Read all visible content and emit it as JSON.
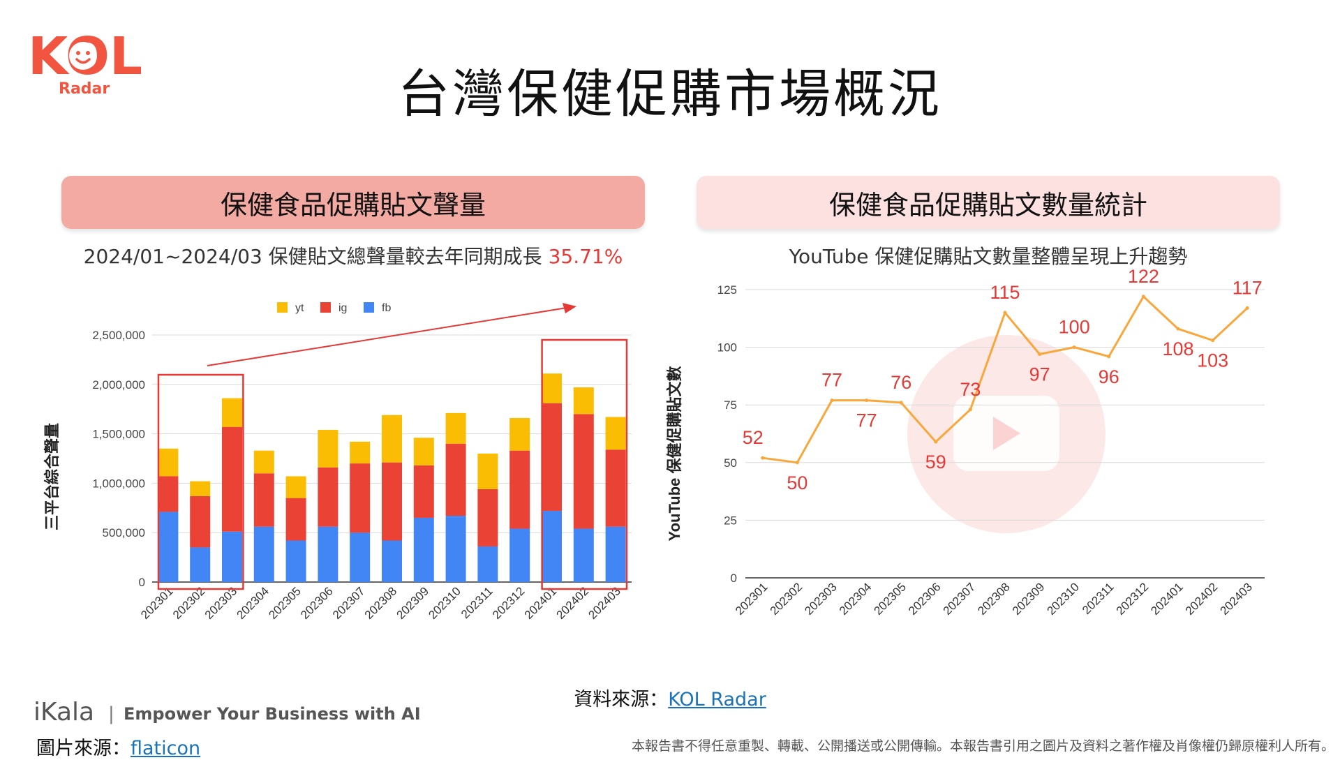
{
  "logo": {
    "main": "KOL",
    "sub": "Radar"
  },
  "title": "台灣保健促購市場概況",
  "left_panel": {
    "banner": "保健食品促購貼文聲量",
    "subtitle_prefix": "2024/01~2024/03 保健貼文總聲量較去年同期成長 ",
    "growth": "35.71%"
  },
  "right_panel": {
    "banner": "保健食品促購貼文數量統計",
    "subtitle": "YouTube  保健促購貼文數量整體呈現上升趨勢"
  },
  "chart_data": [
    {
      "type": "bar",
      "stacked": true,
      "categories": [
        "202301",
        "202302",
        "202303",
        "202304",
        "202305",
        "202306",
        "202307",
        "202308",
        "202309",
        "202310",
        "202311",
        "202312",
        "202401",
        "202402",
        "202403"
      ],
      "series": [
        {
          "name": "fb",
          "color": "#4285f4",
          "values": [
            710000,
            350000,
            510000,
            560000,
            420000,
            560000,
            500000,
            420000,
            650000,
            670000,
            360000,
            540000,
            720000,
            540000,
            560000
          ]
        },
        {
          "name": "ig",
          "color": "#ea4335",
          "values": [
            360000,
            520000,
            1060000,
            540000,
            430000,
            600000,
            700000,
            790000,
            530000,
            730000,
            580000,
            790000,
            1090000,
            1160000,
            780000
          ]
        },
        {
          "name": "yt",
          "color": "#fbbc04",
          "values": [
            280000,
            150000,
            290000,
            230000,
            220000,
            380000,
            220000,
            480000,
            280000,
            310000,
            360000,
            330000,
            300000,
            270000,
            330000
          ]
        }
      ],
      "legend": [
        "yt",
        "ig",
        "fb"
      ],
      "legend_position": "top",
      "ylabel": "三平台綜合聲量",
      "yticks": [
        "0",
        "500,000",
        "1,000,000",
        "1,500,000",
        "2,000,000",
        "2,500,000"
      ],
      "ylim": [
        0,
        2500000
      ],
      "grid": true,
      "highlighted_groups": [
        [
          "202301",
          "202303"
        ],
        [
          "202401",
          "202403"
        ]
      ]
    },
    {
      "type": "line",
      "categories": [
        "202301",
        "202302",
        "202303",
        "202304",
        "202305",
        "202306",
        "202307",
        "202308",
        "202309",
        "202310",
        "202311",
        "202312",
        "202401",
        "202402",
        "202403"
      ],
      "series": [
        {
          "values": [
            52,
            50,
            77,
            77,
            76,
            59,
            73,
            115,
            97,
            100,
            96,
            122,
            108,
            103,
            117
          ]
        }
      ],
      "line_color": "#f9a63b",
      "label_color": "#e53935",
      "ylabel": "YouTube 保健促購貼文數",
      "yticks": [
        "0",
        "25",
        "50",
        "75",
        "100",
        "125"
      ],
      "ylim": [
        0,
        125
      ],
      "grid": true,
      "background_icon": "youtube-play-icon"
    }
  ],
  "footer": {
    "source_label": "資料來源：",
    "source_link": "KOL Radar",
    "brand": "iKala",
    "tagline": "Empower Your Business with AI",
    "image_source_label": "圖片來源：",
    "image_source_link": "flaticon",
    "disclaimer": "本報告書不得任意重製、轉載、公開播送或公開傳輸。本報告書引用之圖片及資料之著作權及肖像權仍歸原權利人所有。"
  }
}
